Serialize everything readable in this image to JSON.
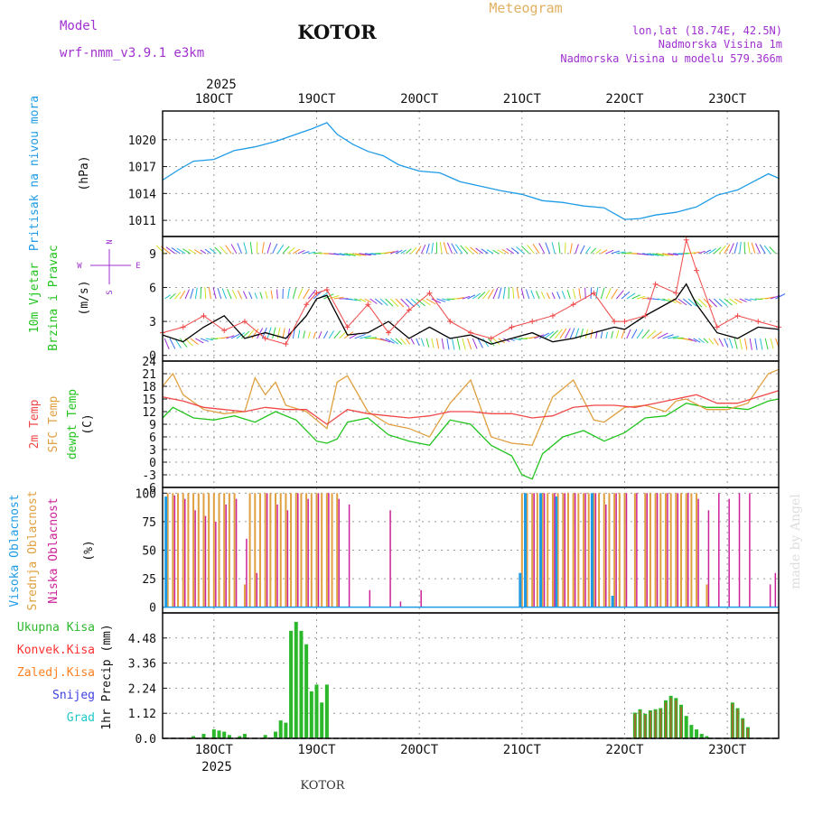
{
  "header": {
    "model_label": "Model",
    "model_name": "wrf-nmm_v3.9.1  e3km",
    "station": "KOTOR",
    "product": "Meteogram",
    "coords": "lon,lat (18.74E, 42.5N)",
    "elevation": "Nadmorska Visina 1m",
    "model_elevation": "Nadmorska Visina u modelu 579.366m",
    "footer_station": "KOTOR",
    "watermark": "made by Angel"
  },
  "colors": {
    "pressure": "#1e9be6",
    "wind_label": "#22c41e",
    "direction_legend": "#a030d0",
    "temp2m": "#f04848",
    "sfc": "#e0a040",
    "dewpt": "#22c41e",
    "high_cloud": "#1e9be6",
    "mid_cloud": "#e0a040",
    "low_cloud": "#cc2299",
    "total_precip": "#2bb82b",
    "conv_precip": "#ff3030",
    "frozen_precip": "#ff8020",
    "snow": "#4040e0",
    "hail": "#20c8c8",
    "title": "#111111",
    "meteogram": "#e0b060",
    "info": "#a030d0"
  },
  "chart_data": [
    {
      "id": "pressure",
      "type": "line",
      "title": "Pritisak na nivou mora",
      "unit_label": "(hPa)",
      "x_unit": "days since 18 Oct 2025 00 UTC",
      "xlim": [
        -0.5,
        5.5
      ],
      "ylim": [
        1009.2,
        1023.2
      ],
      "yticks": [
        1011,
        1014,
        1017,
        1020
      ],
      "series": [
        {
          "name": "MSLP",
          "x": [
            -0.5,
            -0.35,
            -0.2,
            0.0,
            0.2,
            0.4,
            0.6,
            0.8,
            0.95,
            1.1,
            1.2,
            1.35,
            1.5,
            1.65,
            1.8,
            2.0,
            2.2,
            2.4,
            2.6,
            2.8,
            3.0,
            3.2,
            3.4,
            3.6,
            3.8,
            4.0,
            4.15,
            4.3,
            4.5,
            4.7,
            4.9,
            5.1,
            5.25,
            5.4,
            5.5
          ],
          "y": [
            1015.5,
            1016.6,
            1017.6,
            1017.8,
            1018.8,
            1019.2,
            1019.8,
            1020.6,
            1021.2,
            1021.9,
            1020.6,
            1019.5,
            1018.7,
            1018.2,
            1017.2,
            1016.5,
            1016.3,
            1015.3,
            1014.8,
            1014.3,
            1013.9,
            1013.2,
            1013.0,
            1012.6,
            1012.4,
            1011.1,
            1011.2,
            1011.6,
            1011.9,
            1012.5,
            1013.8,
            1014.4,
            1015.3,
            1016.2,
            1015.7
          ]
        }
      ]
    },
    {
      "id": "wind",
      "type": "line",
      "title_lines": [
        "10m Vjetar",
        "Brzina i Pravac"
      ],
      "unit_label": "(m/s)",
      "direction_legend": [
        "N",
        "W",
        "E",
        "S"
      ],
      "xlim": [
        -0.5,
        5.5
      ],
      "ylim": [
        -0.5,
        10.5
      ],
      "yticks": [
        0,
        3,
        6,
        9
      ],
      "series": [
        {
          "name": "10m wind speed",
          "x": [
            -0.5,
            -0.3,
            -0.1,
            0.1,
            0.3,
            0.5,
            0.7,
            0.9,
            1.0,
            1.1,
            1.3,
            1.5,
            1.7,
            1.9,
            2.1,
            2.3,
            2.5,
            2.7,
            2.9,
            3.1,
            3.3,
            3.5,
            3.7,
            3.9,
            4.0,
            4.2,
            4.3,
            4.5,
            4.6,
            4.7,
            4.9,
            5.1,
            5.3,
            5.5
          ],
          "y": [
            1.8,
            1.2,
            2.5,
            3.5,
            1.5,
            2.0,
            1.5,
            3.5,
            5.0,
            5.3,
            1.8,
            2.0,
            3.0,
            1.5,
            2.5,
            1.5,
            1.8,
            1.0,
            1.5,
            2.0,
            1.2,
            1.5,
            2.0,
            2.5,
            2.3,
            3.5,
            4.0,
            5.0,
            6.3,
            4.5,
            2.0,
            1.5,
            2.5,
            2.3
          ]
        },
        {
          "name": "wind gust",
          "x": [
            -0.5,
            -0.3,
            -0.1,
            0.1,
            0.3,
            0.5,
            0.7,
            0.9,
            1.0,
            1.1,
            1.3,
            1.5,
            1.7,
            1.9,
            2.1,
            2.3,
            2.5,
            2.7,
            2.9,
            3.1,
            3.3,
            3.5,
            3.7,
            3.9,
            4.0,
            4.2,
            4.3,
            4.5,
            4.6,
            4.7,
            4.9,
            5.1,
            5.3,
            5.5
          ],
          "y": [
            2.0,
            2.5,
            3.5,
            2.2,
            3.0,
            1.5,
            1.0,
            4.5,
            5.5,
            5.8,
            2.5,
            4.5,
            2.0,
            4.0,
            5.5,
            3.0,
            2.0,
            1.5,
            2.5,
            3.0,
            3.5,
            4.5,
            5.5,
            3.0,
            3.0,
            3.5,
            6.3,
            5.5,
            10.2,
            7.5,
            2.5,
            3.5,
            3.0,
            2.5
          ]
        }
      ]
    },
    {
      "id": "temperature",
      "type": "line",
      "title_lines": [
        "2m Temp",
        "SFC Temp",
        "dewpt Temp"
      ],
      "unit_label": "(C)",
      "xlim": [
        -0.5,
        5.5
      ],
      "ylim": [
        -6,
        24
      ],
      "yticks": [
        -6,
        -3,
        0,
        3,
        6,
        9,
        12,
        15,
        18,
        21,
        24
      ],
      "series": [
        {
          "name": "2m Temp",
          "x": [
            -0.5,
            -0.3,
            -0.1,
            0.1,
            0.3,
            0.5,
            0.7,
            0.9,
            1.1,
            1.3,
            1.5,
            1.7,
            1.9,
            2.1,
            2.3,
            2.5,
            2.7,
            2.9,
            3.1,
            3.3,
            3.5,
            3.7,
            3.9,
            4.1,
            4.3,
            4.5,
            4.7,
            4.9,
            5.1,
            5.3,
            5.5
          ],
          "y": [
            15.5,
            14.5,
            13.0,
            12.5,
            12.0,
            13.0,
            12.5,
            12.5,
            9.0,
            12.5,
            11.5,
            11.0,
            10.5,
            11.0,
            12.0,
            12.0,
            11.5,
            11.5,
            10.5,
            11.0,
            13.0,
            13.5,
            13.5,
            13.0,
            14.0,
            15.0,
            16.0,
            14.0,
            14.0,
            15.5,
            17.0
          ]
        },
        {
          "name": "SFC Temp",
          "x": [
            -0.5,
            -0.4,
            -0.3,
            -0.1,
            0.1,
            0.3,
            0.4,
            0.5,
            0.6,
            0.7,
            0.9,
            1.1,
            1.2,
            1.3,
            1.5,
            1.7,
            1.9,
            2.1,
            2.3,
            2.5,
            2.7,
            2.9,
            3.1,
            3.3,
            3.5,
            3.7,
            3.8,
            4.0,
            4.2,
            4.4,
            4.5,
            4.6,
            4.8,
            5.0,
            5.2,
            5.4,
            5.5
          ],
          "y": [
            18.0,
            21.0,
            16.0,
            12.5,
            11.5,
            12.0,
            20.0,
            16.0,
            19.0,
            13.5,
            12.0,
            8.0,
            19.0,
            20.5,
            12.0,
            9.0,
            8.0,
            6.0,
            14.0,
            19.5,
            6.0,
            4.5,
            4.0,
            15.5,
            19.5,
            10.0,
            9.5,
            13.0,
            13.5,
            12.0,
            14.5,
            15.0,
            12.5,
            12.5,
            14.0,
            21.0,
            22.0
          ]
        },
        {
          "name": "dewpt Temp",
          "x": [
            -0.5,
            -0.4,
            -0.2,
            0.0,
            0.2,
            0.4,
            0.6,
            0.8,
            1.0,
            1.1,
            1.2,
            1.3,
            1.5,
            1.7,
            1.9,
            2.1,
            2.3,
            2.5,
            2.7,
            2.9,
            3.0,
            3.1,
            3.2,
            3.4,
            3.6,
            3.8,
            4.0,
            4.2,
            4.4,
            4.6,
            4.8,
            5.0,
            5.2,
            5.4,
            5.5
          ],
          "y": [
            10.5,
            13.0,
            10.5,
            10.0,
            11.0,
            9.5,
            12.0,
            10.0,
            5.0,
            4.5,
            5.5,
            9.5,
            10.5,
            6.5,
            5.0,
            4.0,
            10.0,
            9.0,
            4.0,
            1.5,
            -3.0,
            -4.0,
            2.0,
            6.0,
            7.5,
            5.0,
            7.0,
            10.5,
            11.0,
            14.0,
            13.0,
            13.0,
            12.5,
            14.5,
            15.0
          ]
        }
      ]
    },
    {
      "id": "cloud_cover",
      "type": "bar",
      "title_lines": [
        "Visoka Oblacnost",
        "Srednja Oblacnost",
        "Niska  Oblacnost"
      ],
      "unit_label": "(%)",
      "xlim": [
        -0.5,
        5.5
      ],
      "ylim": [
        -5,
        105
      ],
      "yticks": [
        0,
        25,
        50,
        75,
        100
      ],
      "series": [
        {
          "name": "Visoka Oblacnost",
          "x": [
            -0.45,
            3.0,
            3.05,
            3.2,
            3.35,
            3.7,
            3.9
          ],
          "values": [
            97,
            30,
            100,
            100,
            97,
            100,
            10
          ]
        },
        {
          "name": "Srednja Oblacnost",
          "x": [
            -0.45,
            -0.4,
            -0.35,
            -0.3,
            -0.25,
            -0.2,
            -0.15,
            -0.1,
            -0.05,
            0.0,
            0.05,
            0.1,
            0.15,
            0.2,
            0.3,
            0.35,
            0.4,
            0.45,
            0.5,
            0.55,
            0.6,
            0.65,
            0.7,
            0.75,
            0.8,
            0.85,
            0.9,
            0.95,
            1.0,
            1.05,
            1.1,
            1.15,
            1.2,
            3.0,
            3.05,
            3.1,
            3.15,
            3.2,
            3.25,
            3.3,
            3.35,
            3.4,
            3.45,
            3.5,
            3.55,
            3.6,
            3.65,
            3.7,
            3.75,
            3.8,
            3.85,
            3.9,
            3.95,
            4.0,
            4.1,
            4.2,
            4.25,
            4.3,
            4.35,
            4.4,
            4.45,
            4.5,
            4.55,
            4.6,
            4.65,
            4.7,
            4.8
          ],
          "values": [
            100,
            100,
            100,
            100,
            100,
            100,
            100,
            100,
            100,
            100,
            100,
            100,
            100,
            100,
            20,
            100,
            100,
            100,
            100,
            100,
            100,
            100,
            100,
            100,
            100,
            100,
            100,
            100,
            100,
            100,
            100,
            100,
            100,
            100,
            100,
            100,
            100,
            100,
            100,
            100,
            100,
            100,
            100,
            100,
            100,
            100,
            100,
            100,
            100,
            100,
            100,
            100,
            100,
            100,
            100,
            100,
            100,
            100,
            100,
            100,
            100,
            100,
            100,
            100,
            100,
            100,
            20
          ]
        },
        {
          "name": "Niska  Oblacnost",
          "x": [
            -0.4,
            -0.3,
            -0.2,
            -0.1,
            0.0,
            0.1,
            0.2,
            0.3,
            0.4,
            0.5,
            0.6,
            0.7,
            0.8,
            0.9,
            1.0,
            1.1,
            1.2,
            1.3,
            1.5,
            1.7,
            1.8,
            2.0,
            3.1,
            3.2,
            3.3,
            3.4,
            3.5,
            3.6,
            3.7,
            3.8,
            3.9,
            4.0,
            4.1,
            4.2,
            4.3,
            4.4,
            4.5,
            4.6,
            4.7,
            4.8,
            4.9,
            5.0,
            5.1,
            5.2,
            5.4,
            5.45
          ],
          "values": [
            98,
            95,
            85,
            80,
            75,
            90,
            95,
            60,
            30,
            100,
            90,
            85,
            100,
            95,
            100,
            100,
            95,
            90,
            15,
            85,
            5,
            15,
            100,
            100,
            100,
            100,
            100,
            100,
            100,
            90,
            100,
            100,
            100,
            100,
            100,
            100,
            100,
            100,
            95,
            85,
            100,
            95,
            100,
            100,
            20,
            30
          ]
        }
      ]
    },
    {
      "id": "precipitation",
      "type": "bar",
      "title_lines": [
        "Ukupna  Kisa",
        "Konvek.Kisa",
        "Zaledj.Kisa",
        "Snijeg",
        "Grad"
      ],
      "unit_label": "1hr Precip (mm)",
      "xlim": [
        -0.5,
        5.5
      ],
      "ylim": [
        0,
        5.6
      ],
      "yticks": [
        0,
        1.12,
        2.24,
        3.36,
        4.48
      ],
      "series": [
        {
          "name": "Ukupna  Kisa",
          "x": [
            -0.2,
            -0.1,
            0.0,
            0.05,
            0.1,
            0.15,
            0.25,
            0.3,
            0.5,
            0.6,
            0.65,
            0.7,
            0.75,
            0.8,
            0.85,
            0.9,
            0.95,
            1.0,
            1.05,
            1.1,
            4.1,
            4.15,
            4.2,
            4.25,
            4.3,
            4.35,
            4.4,
            4.45,
            4.5,
            4.55,
            4.6,
            4.65,
            4.7,
            4.75,
            4.8,
            5.05,
            5.1,
            5.15,
            5.2
          ],
          "values": [
            0.1,
            0.2,
            0.4,
            0.35,
            0.3,
            0.15,
            0.1,
            0.2,
            0.15,
            0.3,
            0.8,
            0.7,
            4.8,
            5.2,
            4.8,
            4.2,
            2.1,
            2.4,
            1.6,
            2.4,
            1.15,
            1.3,
            1.1,
            1.25,
            1.3,
            1.35,
            1.7,
            1.9,
            1.8,
            1.5,
            1.0,
            0.6,
            0.4,
            0.2,
            0.1,
            1.6,
            1.35,
            0.9,
            0.5
          ]
        },
        {
          "name": "Konvek.Kisa",
          "x": [
            4.1,
            4.15,
            4.2,
            4.25,
            4.3,
            4.35,
            4.4,
            4.45,
            4.5,
            4.55,
            5.05,
            5.1,
            5.15,
            5.2
          ],
          "values": [
            1.1,
            1.25,
            1.05,
            1.2,
            1.25,
            1.3,
            1.6,
            1.8,
            1.7,
            1.4,
            1.55,
            1.3,
            0.85,
            0.45
          ]
        }
      ]
    }
  ],
  "time_axis": {
    "top_year": "2025",
    "bottom_year": "2025",
    "day_labels": [
      "18OCT",
      "19OCT",
      "20OCT",
      "21OCT",
      "22OCT",
      "23OCT"
    ]
  }
}
